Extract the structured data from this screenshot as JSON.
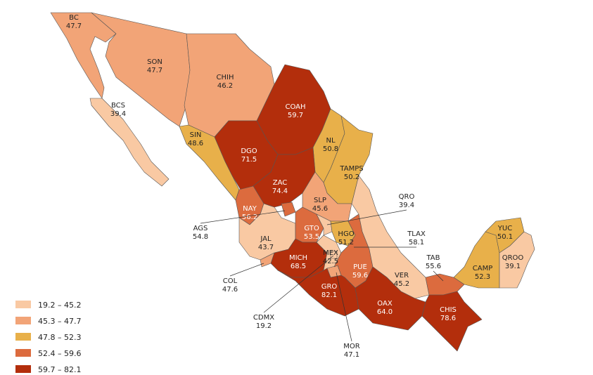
{
  "map": {
    "states": [
      {
        "abbr": "BC",
        "value": "47.7",
        "color": "#f2a477"
      },
      {
        "abbr": "SON",
        "value": "47.7",
        "color": "#f2a477"
      },
      {
        "abbr": "CHIH",
        "value": "46.2",
        "color": "#f2a477"
      },
      {
        "abbr": "BCS",
        "value": "39.4",
        "color": "#f9c9a3"
      },
      {
        "abbr": "COAH",
        "value": "59.7",
        "color": "#b32e0c"
      },
      {
        "abbr": "SIN",
        "value": "48.6",
        "color": "#e8b04a"
      },
      {
        "abbr": "DGO",
        "value": "71.5",
        "color": "#b32e0c"
      },
      {
        "abbr": "NL",
        "value": "50.8",
        "color": "#e8b04a"
      },
      {
        "abbr": "TAMPS",
        "value": "50.2",
        "color": "#e8b04a"
      },
      {
        "abbr": "ZAC",
        "value": "74.4",
        "color": "#b32e0c"
      },
      {
        "abbr": "SLP",
        "value": "45.6",
        "color": "#f2a477"
      },
      {
        "abbr": "NAY",
        "value": "56.2",
        "color": "#dc6b3e"
      },
      {
        "abbr": "AGS",
        "value": "54.8",
        "color": "#dc6b3e"
      },
      {
        "abbr": "JAL",
        "value": "43.7",
        "color": "#f9c9a3"
      },
      {
        "abbr": "GTO",
        "value": "53.5",
        "color": "#dc6b3e"
      },
      {
        "abbr": "QRO",
        "value": "39.4",
        "color": "#f9c9a3"
      },
      {
        "abbr": "HGO",
        "value": "51.2",
        "color": "#e8b04a"
      },
      {
        "abbr": "MICH",
        "value": "68.5",
        "color": "#b32e0c"
      },
      {
        "abbr": "COL",
        "value": "47.6",
        "color": "#f2a477"
      },
      {
        "abbr": "MEX",
        "value": "42.5",
        "color": "#f9c9a3"
      },
      {
        "abbr": "CDMX",
        "value": "19.2",
        "color": "#f9c9a3"
      },
      {
        "abbr": "TLAX",
        "value": "58.1",
        "color": "#dc6b3e"
      },
      {
        "abbr": "MOR",
        "value": "47.1",
        "color": "#f2a477"
      },
      {
        "abbr": "PUE",
        "value": "59.6",
        "color": "#dc6b3e"
      },
      {
        "abbr": "VER",
        "value": "45.2",
        "color": "#f9c9a3"
      },
      {
        "abbr": "GRO",
        "value": "82.1",
        "color": "#b32e0c"
      },
      {
        "abbr": "OAX",
        "value": "64.0",
        "color": "#b32e0c"
      },
      {
        "abbr": "TAB",
        "value": "55.6",
        "color": "#dc6b3e"
      },
      {
        "abbr": "CHIS",
        "value": "78.6",
        "color": "#b32e0c"
      },
      {
        "abbr": "CAMP",
        "value": "52.3",
        "color": "#e8b04a"
      },
      {
        "abbr": "YUC",
        "value": "50.1",
        "color": "#e8b04a"
      },
      {
        "abbr": "QROO",
        "value": "39.1",
        "color": "#f9c9a3"
      }
    ],
    "legend": [
      {
        "label": "19.2 – 45.2",
        "color": "#f9c9a3"
      },
      {
        "label": "45.3 – 47.7",
        "color": "#f2a477"
      },
      {
        "label": "47.8 – 52.3",
        "color": "#e8b04a"
      },
      {
        "label": "52.4 – 59.6",
        "color": "#dc6b3e"
      },
      {
        "label": "59.7 – 82.1",
        "color": "#b32e0c"
      }
    ]
  }
}
